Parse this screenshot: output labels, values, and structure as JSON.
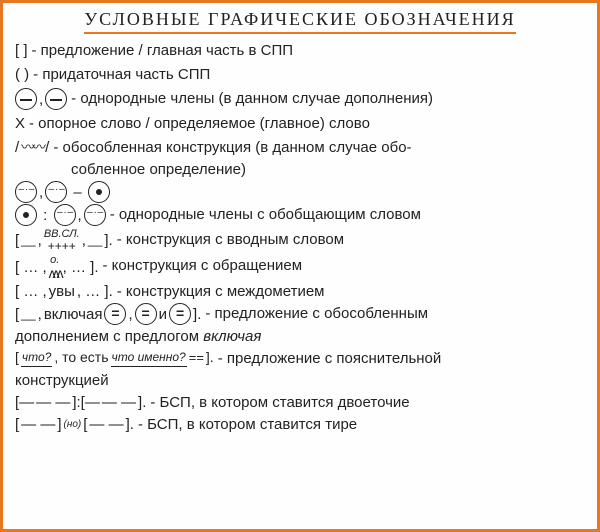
{
  "border_color": "#e87722",
  "title": "УСЛОВНЫЕ ГРАФИЧЕСКИЕ ОБОЗНАЧЕНИЯ",
  "rows": {
    "r1": {
      "sym": "[    ]",
      "desc": "- предложение / главная часть в СПП"
    },
    "r2": {
      "sym": "(    )",
      "desc": "- придаточная часть СПП"
    },
    "r3": {
      "desc": "- однородные члены (в данном случае дополнения)"
    },
    "r4": {
      "sym": "X",
      "desc": "- опорное слово / определяемое (главное) слово"
    },
    "r5": {
      "sym_left": "/",
      "sym_right": "/",
      "desc": "- обособленная конструкция (в данном случае обо-",
      "desc2": "собленное определение)"
    },
    "r6": {
      "desc": "- однородные члены с обобщающим словом"
    },
    "r7": {
      "top": "ВВ.СЛ.",
      "mid": "++++",
      "desc": "- конструкция с вводным словом"
    },
    "r8": {
      "top": "о.",
      "desc": "- конструкция с обращением"
    },
    "r9": {
      "mid": "увы",
      "desc": "- конструкция с междометием"
    },
    "r10": {
      "pre": "включая",
      "join": "и",
      "desc": "- предложение с обособленным",
      "desc2": "дополнением с предлогом",
      "desc2i": "включая"
    },
    "r11": {
      "q1": "что?",
      "mid": ", то есть",
      "q2": "что именно?",
      "desc": "- предложение с пояснительной",
      "desc2": "конструкцией"
    },
    "r12": {
      "desc": "- БСП, в котором ставится двоеточие"
    },
    "r13": {
      "conj": "(но)",
      "desc": "- БСП, в котором ставится тире"
    }
  },
  "wave_glyph": "〰〰",
  "dash_seg": "— —",
  "ldots": "…"
}
